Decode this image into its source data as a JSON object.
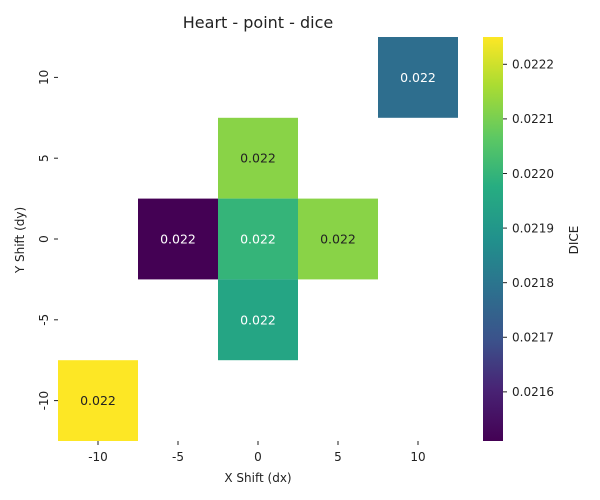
{
  "chart_data": {
    "type": "heatmap",
    "title": "Heart - point - dice",
    "xlabel": "X Shift (dx)",
    "ylabel": "Y Shift (dy)",
    "x_categories": [
      "-10",
      "-5",
      "0",
      "5",
      "10"
    ],
    "y_categories": [
      "10",
      "5",
      "0",
      "-5",
      "-10"
    ],
    "cells": [
      {
        "x": "10",
        "y": "10",
        "value": 0.02178,
        "label": "0.022",
        "label_color": "#ffffff"
      },
      {
        "x": "0",
        "y": "5",
        "value": 0.02212,
        "label": "0.022",
        "label_color": "#222222"
      },
      {
        "x": "-5",
        "y": "0",
        "value": 0.02151,
        "label": "0.022",
        "label_color": "#ffffff"
      },
      {
        "x": "0",
        "y": "0",
        "value": 0.022,
        "label": "0.022",
        "label_color": "#ffffff"
      },
      {
        "x": "5",
        "y": "0",
        "value": 0.02212,
        "label": "0.022",
        "label_color": "#222222"
      },
      {
        "x": "0",
        "y": "-5",
        "value": 0.02195,
        "label": "0.022",
        "label_color": "#ffffff"
      },
      {
        "x": "-10",
        "y": "-10",
        "value": 0.02225,
        "label": "0.022",
        "label_color": "#222222"
      }
    ],
    "colorbar": {
      "label": "DICE",
      "colormap": "viridis",
      "range": [
        0.02151,
        0.02225
      ],
      "ticks": [
        "0.0216",
        "0.0217",
        "0.0218",
        "0.0219",
        "0.0220",
        "0.0221",
        "0.0222"
      ]
    },
    "grid": false
  }
}
